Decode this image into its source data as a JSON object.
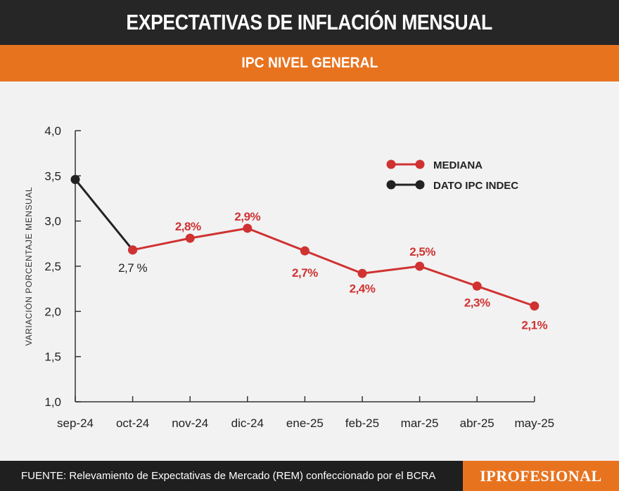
{
  "header": {
    "title": "EXPECTATIVAS DE INFLACIÓN MENSUAL"
  },
  "subheader": {
    "title": "IPC NIVEL GENERAL"
  },
  "footer": {
    "source": "FUENTE: Relevamiento de Expectativas de Mercado (REM) confeccionado por el BCRA",
    "logo": "IPROFESIONAL"
  },
  "colors": {
    "mediana": "#d03232",
    "indec": "#222222",
    "accent": "#e8731f"
  },
  "chart_data": {
    "type": "line",
    "ylabel": "VARIACIÓN PORCENTAJE MENSUAL",
    "ylim": [
      1.0,
      4.0
    ],
    "yticks": [
      "4,0",
      "3,5",
      "3,0",
      "2,5",
      "2,0",
      "1,5",
      "1,0"
    ],
    "ytick_values": [
      4.0,
      3.5,
      3.0,
      2.5,
      2.0,
      1.5,
      1.0
    ],
    "categories": [
      "sep-24",
      "oct-24",
      "nov-24",
      "dic-24",
      "ene-25",
      "feb-25",
      "mar-25",
      "abr-25",
      "may-25"
    ],
    "series": [
      {
        "name": "DATO IPC INDEC",
        "color": "#222222",
        "x": [
          "sep-24",
          "oct-24"
        ],
        "values": [
          3.46,
          2.68
        ],
        "labels": [
          "",
          "2,7 %"
        ]
      },
      {
        "name": "MEDIANA",
        "color": "#d03232",
        "x": [
          "oct-24",
          "nov-24",
          "dic-24",
          "ene-25",
          "feb-25",
          "mar-25",
          "abr-25",
          "may-25"
        ],
        "values": [
          2.68,
          2.81,
          2.92,
          2.67,
          2.42,
          2.5,
          2.28,
          2.06
        ],
        "labels": [
          "",
          "2,8%",
          "2,9%",
          "2,7%",
          "2,4%",
          "2,5%",
          "2,3%",
          "2,1%"
        ]
      }
    ],
    "legend": {
      "placement": "top-right",
      "items": [
        "MEDIANA",
        "DATO IPC INDEC"
      ]
    }
  }
}
